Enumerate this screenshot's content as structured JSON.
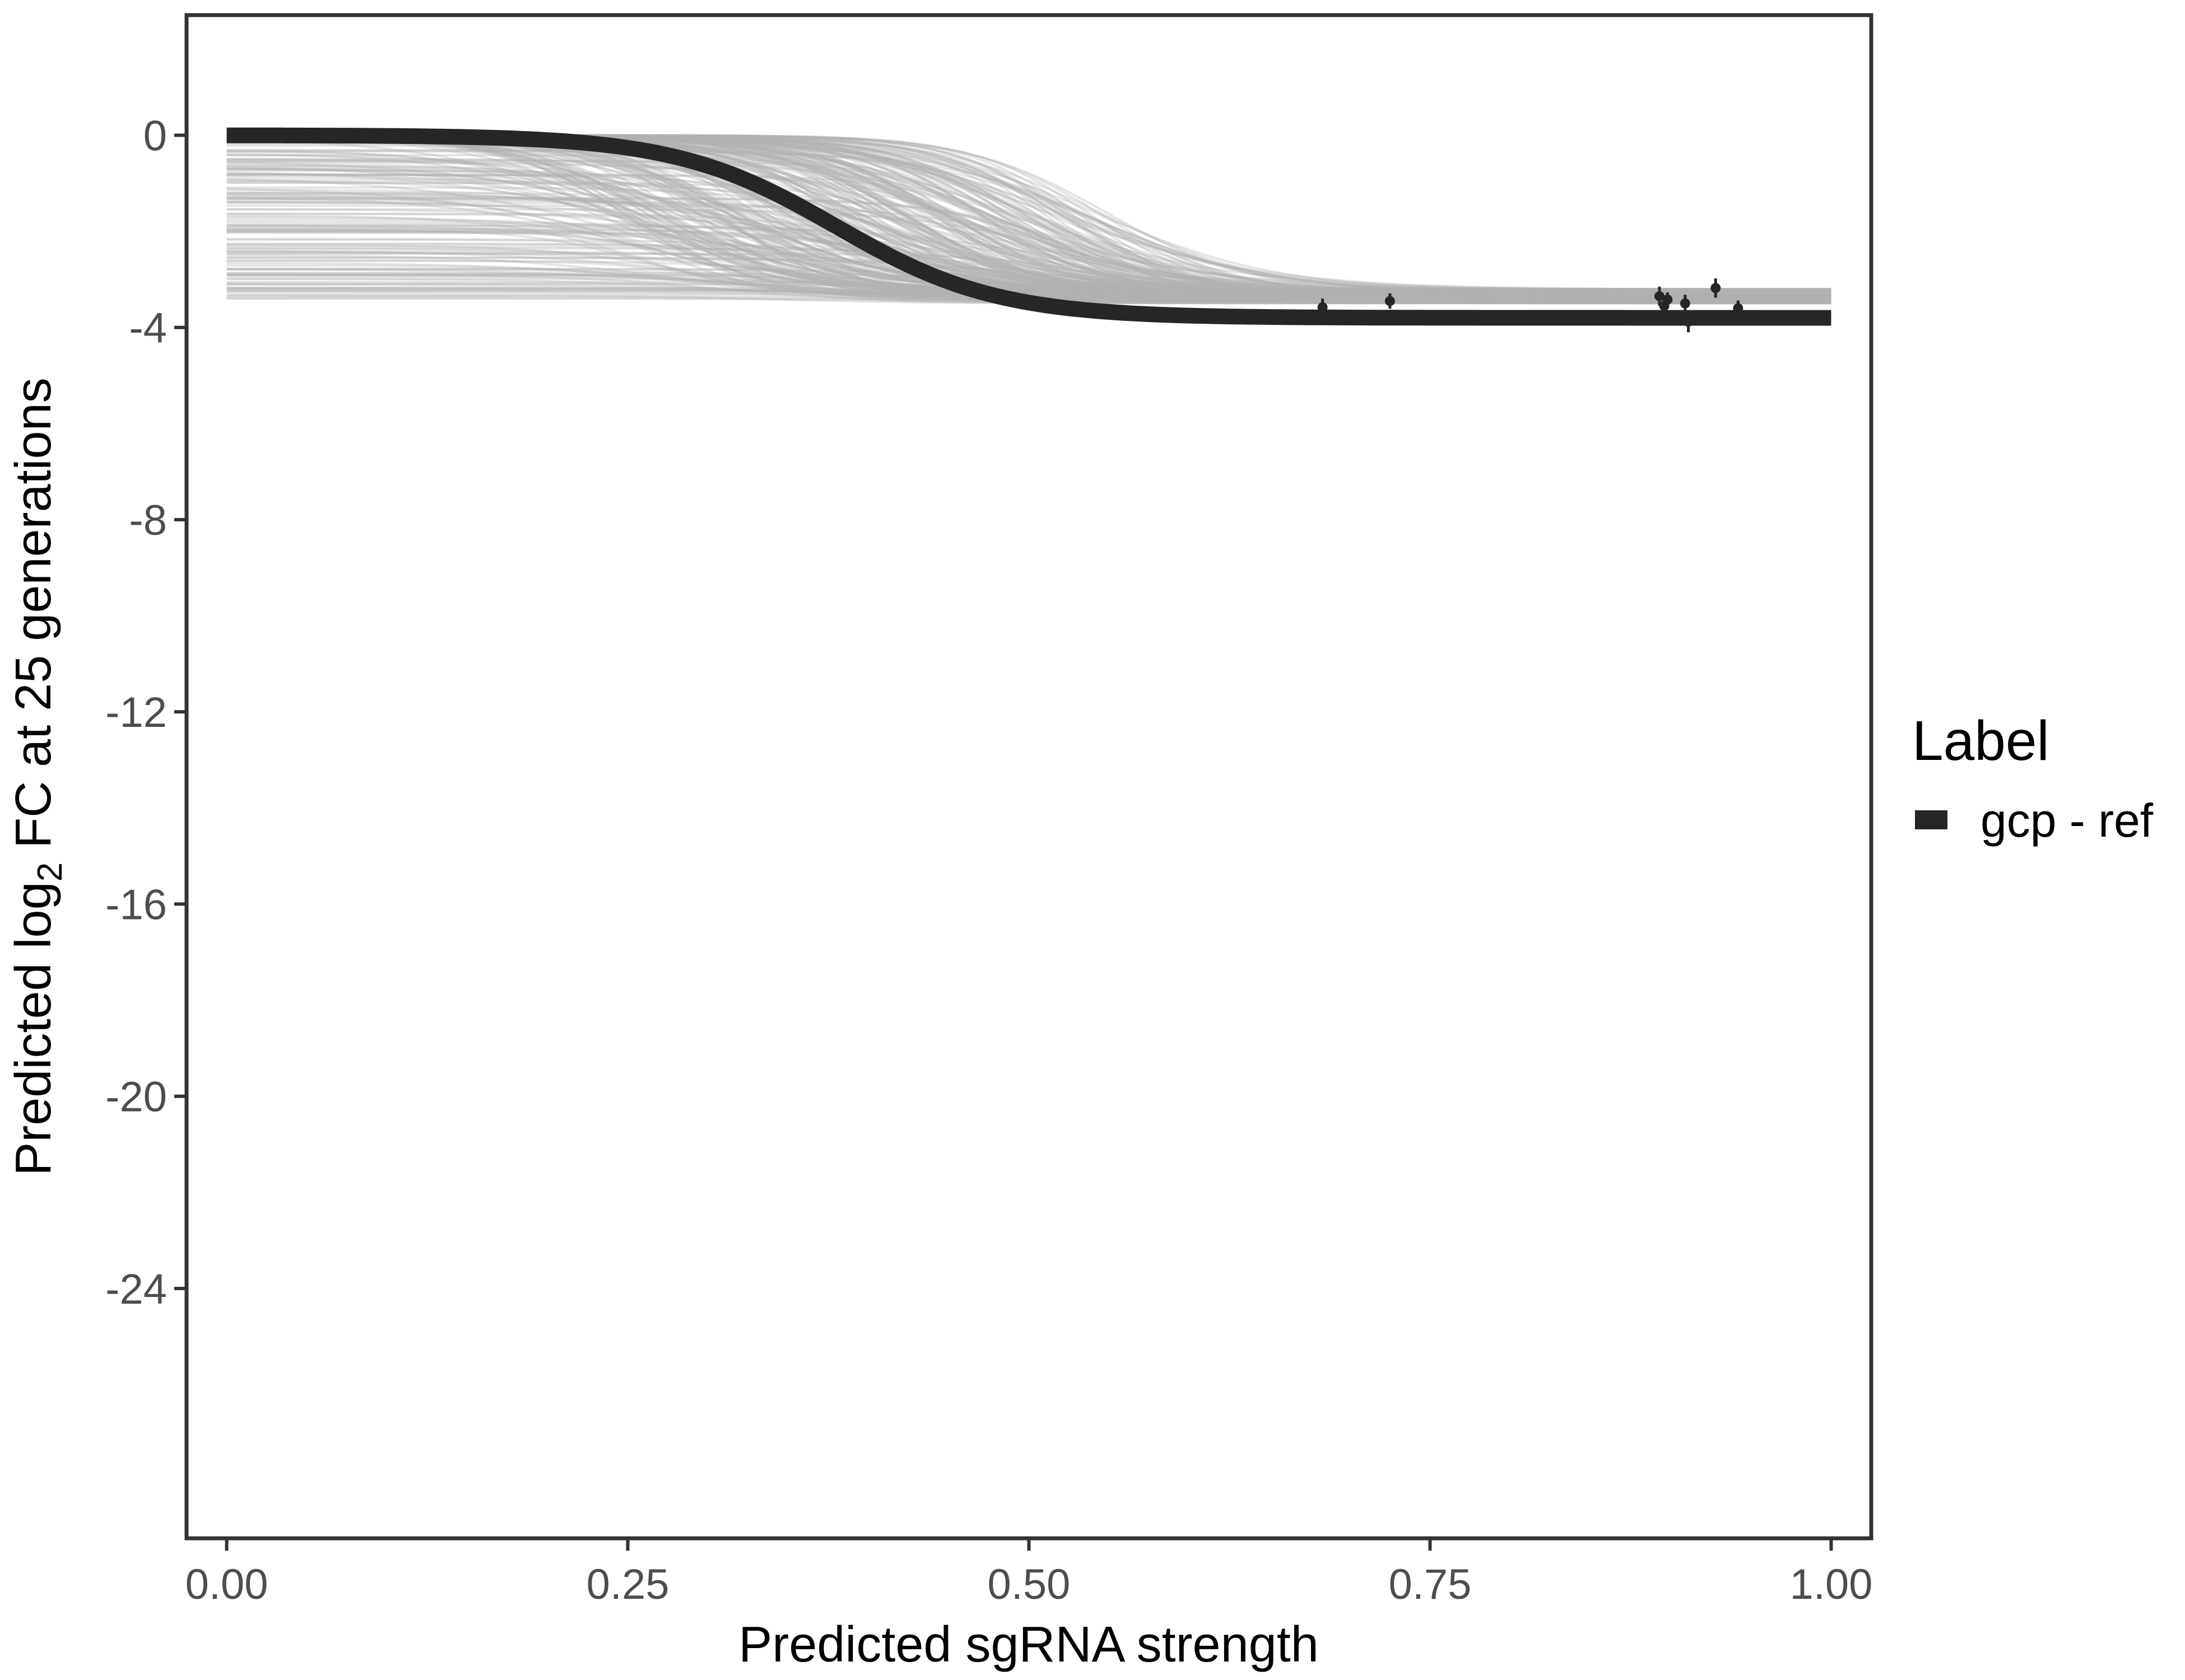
{
  "chart_data": {
    "type": "line",
    "xlabel": "Predicted sgRNA strength",
    "ylabel": {
      "prefix": "Predicted  log",
      "subscript": "2",
      "suffix": " FC at 25 generations"
    },
    "xlim": [
      -0.025,
      1.025
    ],
    "ylim": [
      -29.2,
      2.5
    ],
    "x_ticks": [
      0.0,
      0.25,
      0.5,
      0.75,
      1.0
    ],
    "x_tick_labels": [
      "0.00",
      "0.25",
      "0.50",
      "0.75",
      "1.00"
    ],
    "y_ticks": [
      0,
      -4,
      -8,
      -12,
      -16,
      -20,
      -24
    ],
    "y_tick_labels": [
      "0",
      "-4",
      "-8",
      "-12",
      "-16",
      "-20",
      "-24"
    ],
    "grid": false,
    "legend": {
      "title": "Label",
      "position": "right",
      "entries": [
        {
          "label": "gcp - ref",
          "color": "#262626"
        }
      ]
    },
    "series": [
      {
        "name": "gcp - ref",
        "color": "#262626",
        "model": "logistic",
        "params": {
          "lower": -3.8,
          "midpoint": 0.38,
          "slope": 20
        },
        "x_range": [
          0.0,
          1.0
        ]
      }
    ],
    "posterior_draws": {
      "color": "#b3b3b3",
      "count": 300,
      "lower_range": [
        -3.5,
        -3.2
      ],
      "midpoint_range": [
        0.25,
        0.55
      ],
      "start_range": [
        -3.4,
        0.0
      ]
    },
    "points": [
      {
        "x": 0.683,
        "y": -3.58,
        "err": 0.18
      },
      {
        "x": 0.725,
        "y": -3.45,
        "err": 0.16
      },
      {
        "x": 0.893,
        "y": -3.35,
        "err": 0.2
      },
      {
        "x": 0.896,
        "y": -3.55,
        "err": 0.18
      },
      {
        "x": 0.898,
        "y": -3.42,
        "err": 0.15
      },
      {
        "x": 0.909,
        "y": -3.5,
        "err": 0.18
      },
      {
        "x": 0.911,
        "y": -3.88,
        "err": 0.22
      },
      {
        "x": 0.928,
        "y": -3.18,
        "err": 0.2
      },
      {
        "x": 0.942,
        "y": -3.6,
        "err": 0.16
      }
    ]
  },
  "colors": {
    "panel_border": "#333333",
    "main_line": "#262626",
    "draws": "#b3b3b3",
    "points": "#262626"
  }
}
